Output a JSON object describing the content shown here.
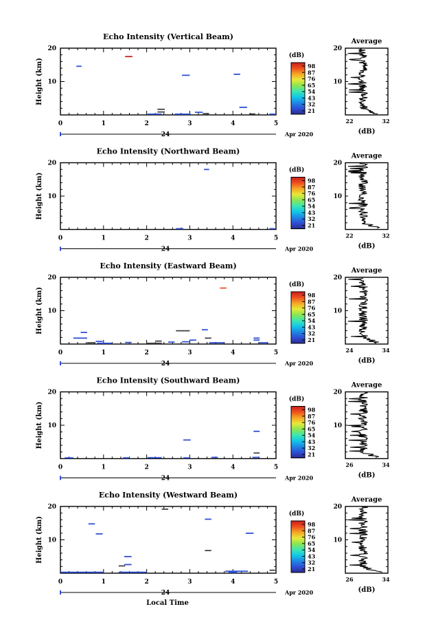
{
  "colorbar": {
    "unit": "(dB)",
    "ticks": [
      "98",
      "87",
      "76",
      "65",
      "54",
      "43",
      "32",
      "21"
    ],
    "stops": [
      "#2b2b8f",
      "#2f4fd6",
      "#1e88e5",
      "#12c8e8",
      "#3fe6b0",
      "#8ce650",
      "#e8e83a",
      "#f5a623",
      "#ef4f1f",
      "#c81e1e"
    ]
  },
  "x_ticks": [
    "0",
    "1",
    "2",
    "3",
    "4",
    "5"
  ],
  "y_ticks": [
    "20",
    "10"
  ],
  "date_label": "24",
  "date_suffix": "Apr 2020",
  "ylabel": "Height (km)",
  "xlabel": "Local Time",
  "avg_title": "Average",
  "avg_xlabel": "(dB)",
  "panels": [
    {
      "title": "Echo Intensity (Vertical Beam)",
      "avg_xticks": [
        "22",
        "32"
      ],
      "avg_xlim": [
        22,
        32
      ],
      "segments": [
        {
          "t0": 0.37,
          "t1": 0.49,
          "h": 14.6,
          "color": "#2f4fd6"
        },
        {
          "t0": 1.5,
          "t1": 1.67,
          "h": 17.5,
          "color": "#c81e1e"
        },
        {
          "t0": 2.82,
          "t1": 3.0,
          "h": 11.9,
          "color": "#2f4fd6"
        },
        {
          "t0": 4.02,
          "t1": 4.17,
          "h": 12.2,
          "color": "#2f4fd6"
        },
        {
          "t0": 2.25,
          "t1": 2.42,
          "h": 1.7,
          "color": "#444"
        },
        {
          "t0": 2.25,
          "t1": 2.42,
          "h": 0.9,
          "color": "#444"
        },
        {
          "t0": 2.02,
          "t1": 2.35,
          "h": 0.2,
          "color": "#2f4fd6"
        },
        {
          "t0": 2.65,
          "t1": 3.02,
          "h": 0.2,
          "color": "#2f4fd6"
        },
        {
          "t0": 3.12,
          "t1": 3.3,
          "h": 0.8,
          "color": "#2f4fd6"
        },
        {
          "t0": 3.3,
          "t1": 3.45,
          "h": 0.4,
          "color": "#444"
        },
        {
          "t0": 4.15,
          "t1": 4.33,
          "h": 2.3,
          "color": "#2f4fd6"
        },
        {
          "t0": 4.38,
          "t1": 4.52,
          "h": 0.3,
          "color": "#444"
        },
        {
          "t0": 4.85,
          "t1": 4.98,
          "h": 0.2,
          "color": "#2f4fd6"
        }
      ]
    },
    {
      "title": "Echo Intensity (Northward Beam)",
      "avg_xticks": [
        "22",
        "32"
      ],
      "avg_xlim": [
        22,
        32
      ],
      "segments": [
        {
          "t0": 3.33,
          "t1": 3.45,
          "h": 18.0,
          "color": "#2f4fd6"
        },
        {
          "t0": 2.68,
          "t1": 2.85,
          "h": 0.2,
          "color": "#2f4fd6"
        },
        {
          "t0": 4.85,
          "t1": 4.98,
          "h": 0.2,
          "color": "#2f4fd6"
        }
      ]
    },
    {
      "title": "Echo Intensity (Eastward Beam)",
      "avg_xticks": [
        "24",
        "34"
      ],
      "avg_xlim": [
        24,
        34
      ],
      "segments": [
        {
          "t0": 3.7,
          "t1": 3.85,
          "h": 16.8,
          "color": "#ef4f1f"
        },
        {
          "t0": 0.47,
          "t1": 0.62,
          "h": 3.5,
          "color": "#2f4fd6"
        },
        {
          "t0": 0.3,
          "t1": 0.62,
          "h": 1.8,
          "color": "#2f4fd6"
        },
        {
          "t0": 0.62,
          "t1": 0.8,
          "h": 0.4,
          "color": "#444"
        },
        {
          "t0": 0.82,
          "t1": 0.98,
          "h": 0.8,
          "color": "#2f4fd6"
        },
        {
          "t0": 0.85,
          "t1": 1.2,
          "h": 0.2,
          "color": "#2f4fd6"
        },
        {
          "t0": 1.5,
          "t1": 1.65,
          "h": 0.5,
          "color": "#2f4fd6"
        },
        {
          "t0": 2.0,
          "t1": 2.35,
          "h": 0.2,
          "color": "#444"
        },
        {
          "t0": 2.2,
          "t1": 2.35,
          "h": 0.9,
          "color": "#444"
        },
        {
          "t0": 2.5,
          "t1": 2.65,
          "h": 0.6,
          "color": "#2f4fd6"
        },
        {
          "t0": 2.68,
          "t1": 3.0,
          "h": 4.0,
          "color": "#444"
        },
        {
          "t0": 2.82,
          "t1": 3.0,
          "h": 0.7,
          "color": "#2f4fd6"
        },
        {
          "t0": 3.0,
          "t1": 3.15,
          "h": 1.2,
          "color": "#2f4fd6"
        },
        {
          "t0": 3.28,
          "t1": 3.42,
          "h": 4.3,
          "color": "#2f4fd6"
        },
        {
          "t0": 3.35,
          "t1": 3.5,
          "h": 1.8,
          "color": "#444"
        },
        {
          "t0": 3.45,
          "t1": 3.8,
          "h": 0.4,
          "color": "#2f4fd6"
        },
        {
          "t0": 4.48,
          "t1": 4.62,
          "h": 1.8,
          "color": "#2f4fd6"
        },
        {
          "t0": 4.48,
          "t1": 4.62,
          "h": 1.2,
          "color": "#2f4fd6"
        },
        {
          "t0": 4.6,
          "t1": 4.82,
          "h": 0.4,
          "color": "#2f4fd6"
        }
      ]
    },
    {
      "title": "Echo Intensity (Southward Beam)",
      "avg_xticks": [
        "26",
        "34"
      ],
      "avg_xlim": [
        26,
        34
      ],
      "segments": [
        {
          "t0": 2.85,
          "t1": 3.02,
          "h": 5.6,
          "color": "#2f4fd6"
        },
        {
          "t0": 4.48,
          "t1": 4.62,
          "h": 8.2,
          "color": "#2f4fd6"
        },
        {
          "t0": 4.48,
          "t1": 4.62,
          "h": 1.7,
          "color": "#444"
        },
        {
          "t0": 0.1,
          "t1": 0.3,
          "h": 0.1,
          "color": "#2f4fd6"
        },
        {
          "t0": 1.45,
          "t1": 1.6,
          "h": 0.1,
          "color": "#2f4fd6"
        },
        {
          "t0": 2.02,
          "t1": 2.35,
          "h": 0.3,
          "color": "#2f4fd6"
        },
        {
          "t0": 2.85,
          "t1": 3.0,
          "h": 0.2,
          "color": "#2f4fd6"
        },
        {
          "t0": 3.5,
          "t1": 3.65,
          "h": 0.4,
          "color": "#2f4fd6"
        },
        {
          "t0": 4.45,
          "t1": 4.62,
          "h": 0.4,
          "color": "#2f4fd6"
        }
      ]
    },
    {
      "title": "Echo Intensity (Westward Beam)",
      "avg_xticks": [
        "26",
        "34"
      ],
      "avg_xlim": [
        26,
        34
      ],
      "segments": [
        {
          "t0": 2.35,
          "t1": 2.5,
          "h": 19.2,
          "color": "#444"
        },
        {
          "t0": 3.35,
          "t1": 3.5,
          "h": 16.2,
          "color": "#2f4fd6"
        },
        {
          "t0": 0.65,
          "t1": 0.8,
          "h": 14.8,
          "color": "#2f4fd6"
        },
        {
          "t0": 0.82,
          "t1": 0.98,
          "h": 11.8,
          "color": "#2f4fd6"
        },
        {
          "t0": 4.3,
          "t1": 4.48,
          "h": 12.0,
          "color": "#2f4fd6"
        },
        {
          "t0": 3.35,
          "t1": 3.5,
          "h": 6.8,
          "color": "#444"
        },
        {
          "t0": 1.48,
          "t1": 1.65,
          "h": 5.0,
          "color": "#2f4fd6"
        },
        {
          "t0": 1.48,
          "t1": 1.65,
          "h": 2.6,
          "color": "#2f4fd6"
        },
        {
          "t0": 1.35,
          "t1": 1.5,
          "h": 2.2,
          "color": "#444"
        },
        {
          "t0": 0.0,
          "t1": 1.0,
          "h": 0.3,
          "color": "#2f4fd6"
        },
        {
          "t0": 1.35,
          "t1": 2.0,
          "h": 0.3,
          "color": "#2f4fd6"
        },
        {
          "t0": 3.82,
          "t1": 4.35,
          "h": 0.6,
          "color": "#2f4fd6"
        },
        {
          "t0": 3.9,
          "t1": 4.1,
          "h": 0.2,
          "color": "#2f4fd6"
        },
        {
          "t0": 4.85,
          "t1": 4.98,
          "h": 0.9,
          "color": "#444"
        }
      ]
    }
  ],
  "chart_data": [
    {
      "type": "heatmap",
      "title": "Echo Intensity (Vertical Beam)",
      "xlabel": "",
      "ylabel": "Height (km)",
      "xlim": [
        0,
        5
      ],
      "ylim": [
        0,
        20
      ],
      "colorbar": {
        "label": "(dB)",
        "ticks": [
          21,
          32,
          43,
          54,
          65,
          76,
          87,
          98
        ]
      }
    },
    {
      "type": "line",
      "title": "Average",
      "xlabel": "(dB)",
      "xlim": [
        22,
        32
      ],
      "ylim": [
        0,
        20
      ]
    },
    {
      "type": "heatmap",
      "title": "Echo Intensity (Northward Beam)",
      "xlabel": "",
      "ylabel": "Height (km)",
      "xlim": [
        0,
        5
      ],
      "ylim": [
        0,
        20
      ],
      "colorbar": {
        "label": "(dB)",
        "ticks": [
          21,
          32,
          43,
          54,
          65,
          76,
          87,
          98
        ]
      }
    },
    {
      "type": "line",
      "title": "Average",
      "xlabel": "(dB)",
      "xlim": [
        22,
        32
      ],
      "ylim": [
        0,
        20
      ]
    },
    {
      "type": "heatmap",
      "title": "Echo Intensity (Eastward Beam)",
      "xlabel": "",
      "ylabel": "Height (km)",
      "xlim": [
        0,
        5
      ],
      "ylim": [
        0,
        20
      ],
      "colorbar": {
        "label": "(dB)",
        "ticks": [
          21,
          32,
          43,
          54,
          65,
          76,
          87,
          98
        ]
      }
    },
    {
      "type": "line",
      "title": "Average",
      "xlabel": "(dB)",
      "xlim": [
        24,
        34
      ],
      "ylim": [
        0,
        20
      ]
    },
    {
      "type": "heatmap",
      "title": "Echo Intensity (Southward Beam)",
      "xlabel": "",
      "ylabel": "Height (km)",
      "xlim": [
        0,
        5
      ],
      "ylim": [
        0,
        20
      ],
      "colorbar": {
        "label": "(dB)",
        "ticks": [
          21,
          32,
          43,
          54,
          65,
          76,
          87,
          98
        ]
      }
    },
    {
      "type": "line",
      "title": "Average",
      "xlabel": "(dB)",
      "xlim": [
        26,
        34
      ],
      "ylim": [
        0,
        20
      ]
    },
    {
      "type": "heatmap",
      "title": "Echo Intensity (Westward Beam)",
      "xlabel": "Local Time",
      "ylabel": "Height (km)",
      "xlim": [
        0,
        5
      ],
      "ylim": [
        0,
        20
      ],
      "colorbar": {
        "label": "(dB)",
        "ticks": [
          21,
          32,
          43,
          54,
          65,
          76,
          87,
          98
        ]
      }
    },
    {
      "type": "line",
      "title": "Average",
      "xlabel": "(dB)",
      "xlim": [
        26,
        34
      ],
      "ylim": [
        0,
        20
      ]
    }
  ]
}
